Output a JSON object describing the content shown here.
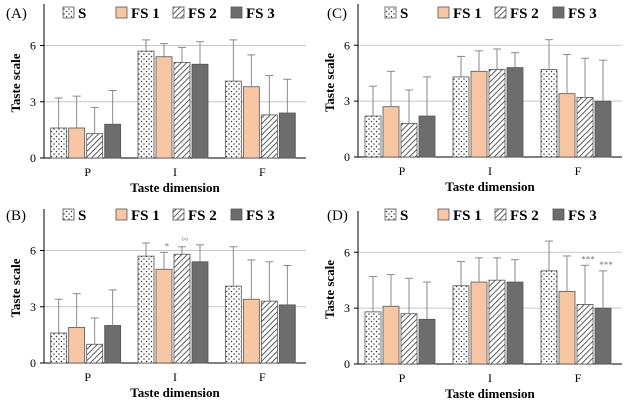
{
  "chart_data": [
    {
      "panel": "(A)",
      "type": "bar",
      "categories": [
        "P",
        "I",
        "F"
      ],
      "xlabel": "Taste dimension",
      "ylabel": "Taste scale",
      "ylim": [
        0,
        8
      ],
      "yticks": [
        "0",
        "3",
        "6"
      ],
      "series": [
        {
          "name": "S",
          "values": [
            1.6,
            5.7,
            4.1
          ],
          "errors": [
            1.6,
            0.6,
            2.2
          ]
        },
        {
          "name": "FS 1",
          "values": [
            1.6,
            5.4,
            3.8
          ],
          "errors": [
            1.7,
            0.7,
            1.7
          ]
        },
        {
          "name": "FS 2",
          "values": [
            1.3,
            5.1,
            2.3
          ],
          "errors": [
            1.4,
            0.8,
            2.1
          ]
        },
        {
          "name": "FS 3",
          "values": [
            1.8,
            5.0,
            2.4
          ],
          "errors": [
            1.8,
            1.2,
            1.8
          ]
        }
      ],
      "annotations": []
    },
    {
      "panel": "(C)",
      "type": "bar",
      "categories": [
        "P",
        "I",
        "F"
      ],
      "xlabel": "Taste dimension",
      "ylabel": "Taste scale",
      "ylim": [
        0,
        8
      ],
      "yticks": [
        "0",
        "3",
        "6"
      ],
      "series": [
        {
          "name": "S",
          "values": [
            2.2,
            4.3,
            4.7
          ],
          "errors": [
            1.6,
            1.1,
            1.6
          ]
        },
        {
          "name": "FS 1",
          "values": [
            2.7,
            4.6,
            3.4
          ],
          "errors": [
            1.9,
            1.1,
            2.1
          ]
        },
        {
          "name": "FS 2",
          "values": [
            1.8,
            4.7,
            3.2
          ],
          "errors": [
            1.8,
            1.1,
            2.1
          ]
        },
        {
          "name": "FS 3",
          "values": [
            2.2,
            4.8,
            3.0
          ],
          "errors": [
            2.1,
            0.8,
            2.2
          ]
        }
      ],
      "annotations": []
    },
    {
      "panel": "(B)",
      "type": "bar",
      "categories": [
        "P",
        "I",
        "F"
      ],
      "xlabel": "Taste dimension",
      "ylabel": "Taste scale",
      "ylim": [
        0,
        8
      ],
      "yticks": [
        "0",
        "3",
        "6"
      ],
      "series": [
        {
          "name": "S",
          "values": [
            1.6,
            5.7,
            4.1
          ],
          "errors": [
            1.8,
            0.7,
            2.1
          ]
        },
        {
          "name": "FS 1",
          "values": [
            1.9,
            5.0,
            3.4
          ],
          "errors": [
            1.8,
            0.9,
            2.1
          ]
        },
        {
          "name": "FS 2",
          "values": [
            1.0,
            5.8,
            3.3
          ],
          "errors": [
            1.4,
            0.4,
            2.1
          ]
        },
        {
          "name": "FS 3",
          "values": [
            2.0,
            5.4,
            3.1
          ],
          "errors": [
            1.9,
            0.9,
            2.1
          ]
        }
      ],
      "annotations": [
        {
          "text": "*",
          "category": "I",
          "series": "FS 1"
        },
        {
          "text": "°°",
          "category": "I",
          "series": "FS 2"
        }
      ]
    },
    {
      "panel": "(D)",
      "type": "bar",
      "categories": [
        "P",
        "I",
        "F"
      ],
      "xlabel": "Taste dimension",
      "ylabel": "Taste scale",
      "ylim": [
        0,
        8
      ],
      "yticks": [
        "0",
        "3",
        "6"
      ],
      "series": [
        {
          "name": "S",
          "values": [
            2.8,
            4.2,
            5.0
          ],
          "errors": [
            1.9,
            1.3,
            1.6
          ]
        },
        {
          "name": "FS 1",
          "values": [
            3.1,
            4.4,
            3.9
          ],
          "errors": [
            1.7,
            1.3,
            1.9
          ]
        },
        {
          "name": "FS 2",
          "values": [
            2.7,
            4.5,
            3.2
          ],
          "errors": [
            1.9,
            1.2,
            2.1
          ]
        },
        {
          "name": "FS 3",
          "values": [
            2.4,
            4.4,
            3.0
          ],
          "errors": [
            2.0,
            1.2,
            2.0
          ]
        }
      ],
      "annotations": [
        {
          "text": "***",
          "category": "F",
          "series": "FS 2"
        },
        {
          "text": "***",
          "category": "F",
          "series": "FS 3"
        }
      ]
    }
  ],
  "legend_labels": [
    "S",
    "FS 1",
    "FS 2",
    "FS 3"
  ],
  "colors": {
    "S_fill": "#ffffff",
    "S_dots": "#333333",
    "FS1_fill": "#f7c6a4",
    "FS2_fill": "#ffffff",
    "FS2_hatch": "#333333",
    "FS3_fill": "#6d6d6d",
    "edge": "#555555",
    "grid": "#c8c8c8",
    "error": "#8a8a8a",
    "annotation": "#777777"
  }
}
